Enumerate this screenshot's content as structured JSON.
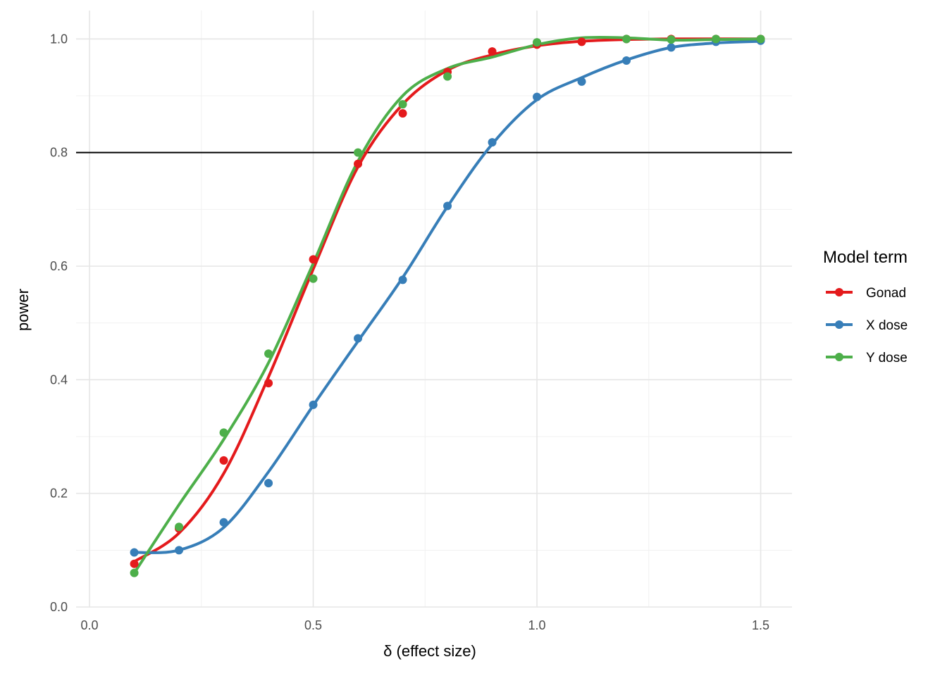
{
  "chart_data": {
    "type": "line",
    "xlabel": "δ (effect size)",
    "ylabel": "power",
    "xlim": [
      -0.03,
      1.57
    ],
    "ylim": [
      0,
      1.05
    ],
    "x_ticks": [
      0.0,
      0.5,
      1.0,
      1.5
    ],
    "x_tick_labels": [
      "0.0",
      "0.5",
      "1.0",
      "1.5"
    ],
    "y_ticks": [
      0.0,
      0.2,
      0.4,
      0.6,
      0.8,
      1.0
    ],
    "y_tick_labels": [
      "0.0",
      "0.2",
      "0.4",
      "0.6",
      "0.8",
      "1.0"
    ],
    "grid": true,
    "reference_line": {
      "y": 0.8,
      "color": "#000000"
    },
    "legend": {
      "title": "Model term",
      "placement": "right"
    },
    "x": [
      0.1,
      0.2,
      0.3,
      0.4,
      0.5,
      0.6,
      0.7,
      0.8,
      0.9,
      1.0,
      1.1,
      1.2,
      1.3,
      1.4,
      1.5
    ],
    "series": [
      {
        "name": "Gonad",
        "color": "#e41a1c",
        "points": [
          0.076,
          0.138,
          0.258,
          0.394,
          0.612,
          0.78,
          0.869,
          0.942,
          0.978,
          0.99,
          0.995,
          1.0,
          1.0,
          1.0,
          1.0
        ],
        "smooth": [
          0.08,
          0.13,
          0.235,
          0.405,
          0.595,
          0.775,
          0.885,
          0.945,
          0.972,
          0.988,
          0.996,
          0.999,
          1.0,
          1.0,
          1.0
        ]
      },
      {
        "name": "X dose",
        "color": "#377eb8",
        "points": [
          0.096,
          0.1,
          0.149,
          0.218,
          0.356,
          0.473,
          0.576,
          0.706,
          0.818,
          0.898,
          0.925,
          0.962,
          0.985,
          0.995,
          0.997
        ],
        "smooth": [
          0.096,
          0.1,
          0.14,
          0.238,
          0.355,
          0.468,
          0.58,
          0.705,
          0.815,
          0.893,
          0.932,
          0.963,
          0.985,
          0.993,
          0.996
        ]
      },
      {
        "name": "Y dose",
        "color": "#4daf4a",
        "points": [
          0.06,
          0.141,
          0.307,
          0.446,
          0.578,
          0.8,
          0.885,
          0.934,
          null,
          0.994,
          null,
          1.0,
          0.999,
          1.0,
          1.0
        ],
        "smooth": [
          0.06,
          0.18,
          0.295,
          0.43,
          0.605,
          0.785,
          0.9,
          0.948,
          0.968,
          0.99,
          1.002,
          1.002,
          0.998,
          0.999,
          1.0
        ]
      }
    ]
  }
}
